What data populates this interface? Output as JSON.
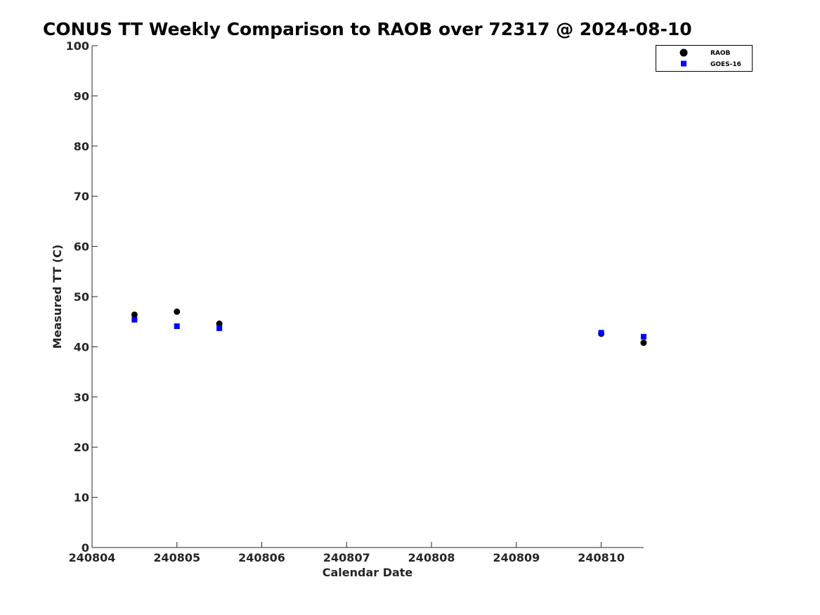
{
  "chart_data": {
    "type": "scatter",
    "title": "CONUS TT Weekly Comparison to RAOB over 72317 @ 2024-08-10",
    "xlabel": "Calendar Date",
    "ylabel": "Measured TT (C)",
    "xlim": [
      240804,
      240810.5
    ],
    "ylim": [
      0,
      100
    ],
    "x_ticks": [
      240804,
      240805,
      240806,
      240807,
      240808,
      240809,
      240810
    ],
    "x_tick_labels": [
      "240804",
      "240805",
      "240806",
      "240807",
      "240808",
      "240809",
      "240810"
    ],
    "y_ticks": [
      0,
      10,
      20,
      30,
      40,
      50,
      60,
      70,
      80,
      90,
      100
    ],
    "y_tick_labels": [
      "0",
      "10",
      "20",
      "30",
      "40",
      "50",
      "60",
      "70",
      "80",
      "90",
      "100"
    ],
    "legend_position": "top-right",
    "series": [
      {
        "name": "RAOB",
        "marker": "circle",
        "color": "#000000",
        "x": [
          240804.5,
          240805.0,
          240805.5,
          240810.0,
          240810.5
        ],
        "y": [
          46.4,
          47.0,
          44.6,
          42.6,
          40.8
        ]
      },
      {
        "name": "GOES-16",
        "marker": "square",
        "color": "#0000ff",
        "x": [
          240804.5,
          240805.0,
          240805.5,
          240810.0,
          240810.5
        ],
        "y": [
          45.4,
          44.1,
          43.7,
          42.8,
          42.0
        ]
      }
    ]
  }
}
